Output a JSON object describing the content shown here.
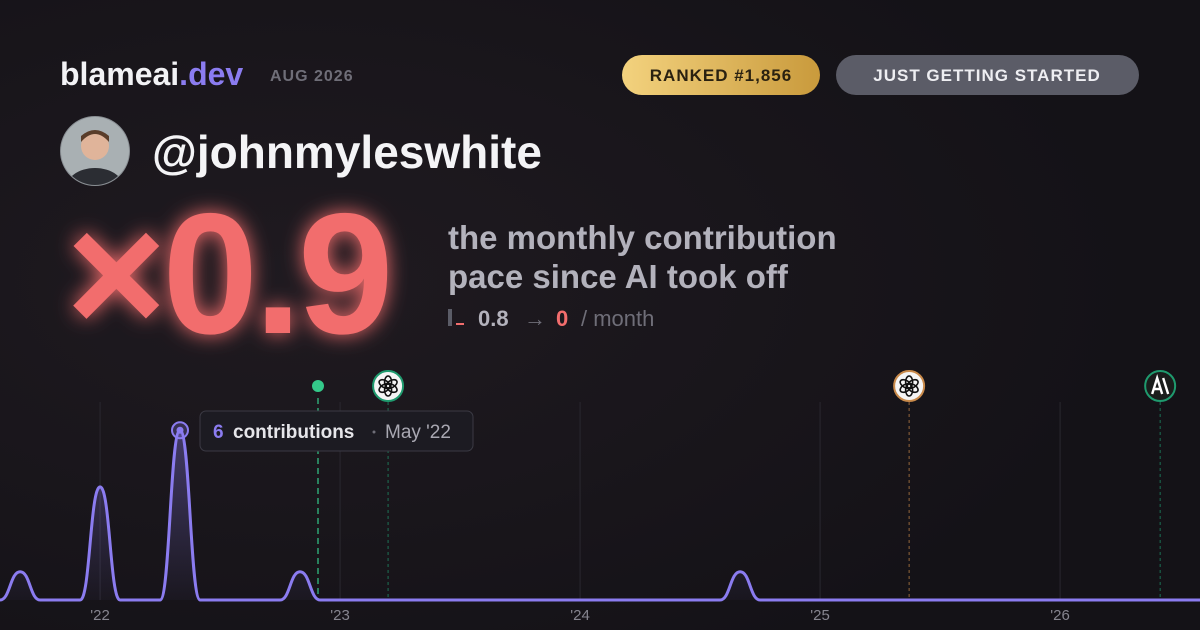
{
  "header": {
    "brand_name": "blameai",
    "brand_tld": ".dev",
    "date": "AUG 2026",
    "rank_badge": "RANKED #1,856",
    "level_badge": "JUST GETTING STARTED"
  },
  "profile": {
    "username": "@johnmyleswhite"
  },
  "stats": {
    "multiplier": "×0.9",
    "description": [
      "the monthly contribution",
      "pace since AI took off"
    ],
    "before": "0.8",
    "arrow": "→",
    "after": "0",
    "unit": "/ month"
  },
  "chart_data": {
    "type": "line",
    "x": [
      2021.583,
      2021.667,
      2021.75,
      2021.917,
      2022.0,
      2022.083,
      2022.25,
      2022.333,
      2022.417,
      2022.75,
      2022.833,
      2022.917,
      2024.583,
      2024.667,
      2024.75,
      2026.583
    ],
    "values": [
      0,
      1,
      0,
      0,
      4,
      0,
      0,
      6,
      0,
      0,
      1,
      0,
      0,
      1,
      0,
      0
    ],
    "color": "#8b7cf0",
    "xlim": [
      2021.583,
      2026.583
    ],
    "ylim": [
      0,
      7
    ],
    "xticks": [
      {
        "value": 2022,
        "label": "'22"
      },
      {
        "value": 2023,
        "label": "'23"
      },
      {
        "value": 2024,
        "label": "'24"
      },
      {
        "value": 2025,
        "label": "'25"
      },
      {
        "value": 2026,
        "label": "'26"
      }
    ],
    "grid": true,
    "tooltip": {
      "index": 7,
      "label": "contributions",
      "date": "May '22"
    },
    "events": [
      {
        "x": 2022.908,
        "kind": "dot",
        "color": "#34c98a"
      },
      {
        "x": 2023.2,
        "kind": "openai",
        "color": "#1f9a6e"
      },
      {
        "x": 2025.371,
        "kind": "openai",
        "color": "#c98a4a"
      },
      {
        "x": 2026.417,
        "kind": "anthropic",
        "color": "#1f9a6e"
      }
    ]
  }
}
